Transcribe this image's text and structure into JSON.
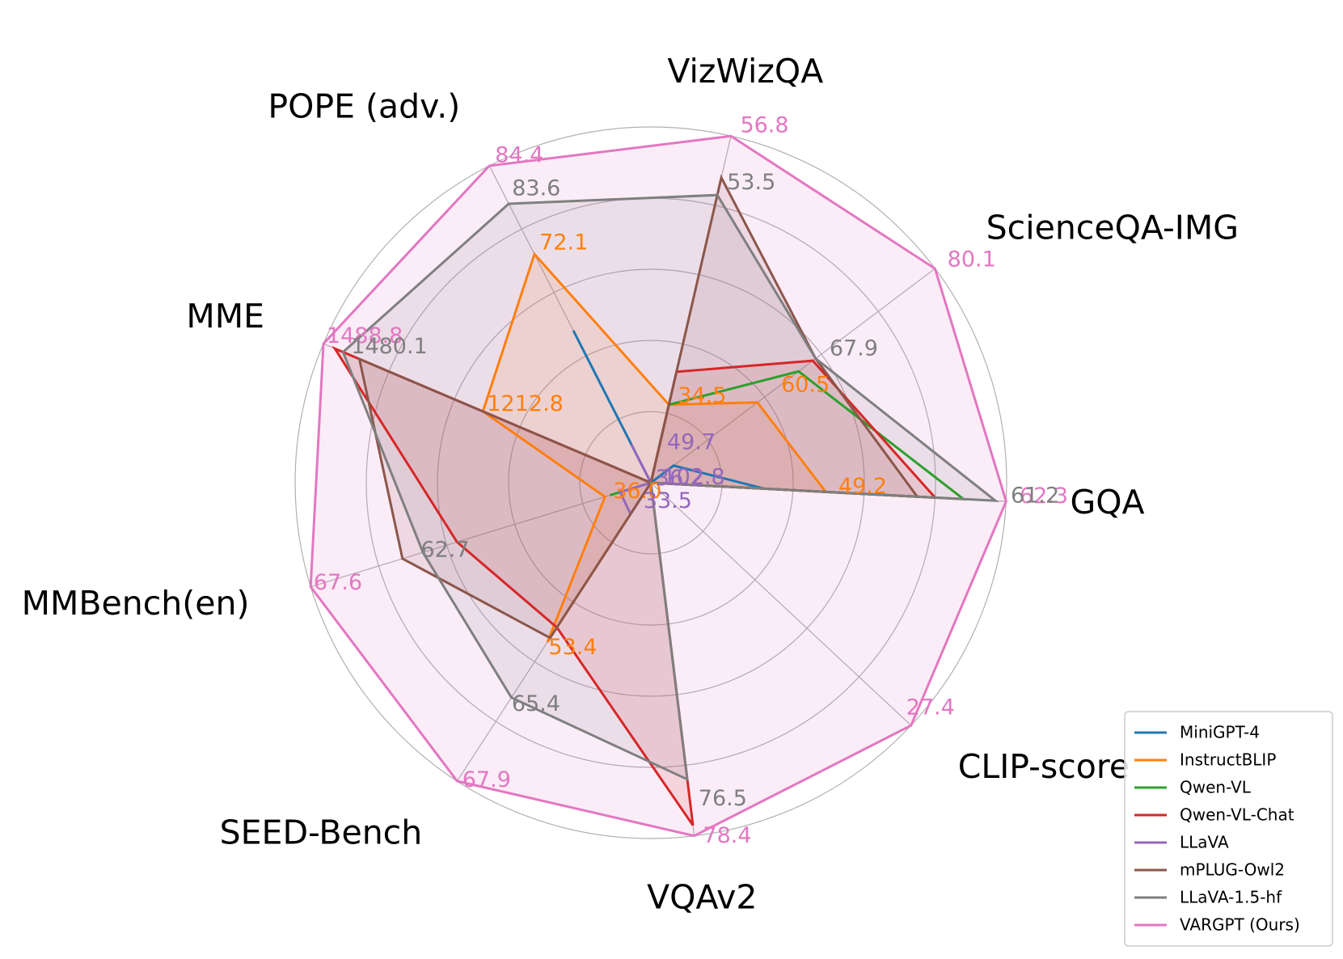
{
  "chart_data": {
    "type": "radar",
    "axes": [
      "GQA",
      "ScienceQA-IMG",
      "VizWizQA",
      "POPE (adv.)",
      "MME",
      "MMBench(en)",
      "SEED-Bench",
      "VQAv2",
      "CLIP-score"
    ],
    "rlim": [
      0,
      100
    ],
    "rgrid_fractions": [
      0.2,
      0.4,
      0.6,
      0.8,
      1.0
    ],
    "legend_position": "bottom-right",
    "series": [
      {
        "name": "MiniGPT-4",
        "color": "#1f77b4",
        "fill": false,
        "values": [
          32,
          8,
          0,
          48,
          0,
          0,
          0,
          0,
          0
        ]
      },
      {
        "name": "InstructBLIP",
        "color": "#ff7f0e",
        "fill": true,
        "values": [
          49.2,
          37.5,
          22.5,
          72.1,
          51.3,
          13.5,
          53.4,
          0,
          0
        ]
      },
      {
        "name": "Qwen-VL",
        "color": "#2ca02c",
        "fill": false,
        "values": [
          88,
          52,
          22.5,
          0,
          0,
          12,
          0,
          0,
          0
        ]
      },
      {
        "name": "Qwen-VL-Chat",
        "color": "#d62728",
        "fill": true,
        "values": [
          80,
          57,
          32,
          0,
          96.5,
          57,
          48.5,
          97,
          0
        ]
      },
      {
        "name": "LLaVA",
        "color": "#9467bd",
        "fill": false,
        "values": [
          0,
          0,
          0,
          12,
          0,
          9,
          10.5,
          0,
          0
        ]
      },
      {
        "name": "mPLUG-Owl2",
        "color": "#8c564b",
        "fill": true,
        "values": [
          75,
          58,
          88,
          0,
          89,
          73,
          52,
          0,
          0
        ]
      },
      {
        "name": "LLaVA-1.5-hf",
        "color": "#7f7f7f",
        "fill": true,
        "values": [
          97,
          58,
          83,
          88,
          94,
          67,
          72,
          84,
          0
        ]
      },
      {
        "name": "VARGPT (Ours)",
        "color": "#e377c2",
        "fill": true,
        "values": [
          100,
          100,
          100,
          100,
          100,
          100,
          100,
          100,
          100
        ]
      }
    ],
    "value_labels": [
      {
        "text": "62.3",
        "color": "#e377c2",
        "axis": 0,
        "r": 101.5
      },
      {
        "text": "61.2",
        "color": "#7f7f7f",
        "axis": 0,
        "r": 99
      },
      {
        "text": "49.2",
        "color": "#ff7f0e",
        "axis": 0,
        "r": 50.5
      },
      {
        "text": "102.8",
        "color": "#9467bd",
        "axis": 0,
        "r": 1
      },
      {
        "text": "80.1",
        "color": "#e377c2",
        "axis": 1,
        "r": 101.5
      },
      {
        "text": "67.9",
        "color": "#7f7f7f",
        "axis": 1,
        "r": 60
      },
      {
        "text": "60.5",
        "color": "#ff7f0e",
        "axis": 1,
        "r": 43
      },
      {
        "text": "56.8",
        "color": "#e377c2",
        "axis": 2,
        "r": 101.5
      },
      {
        "text": "53.5",
        "color": "#7f7f7f",
        "axis": 2,
        "r": 85
      },
      {
        "text": "34.5",
        "color": "#ff7f0e",
        "axis": 2,
        "r": 23.5
      },
      {
        "text": "49.7",
        "color": "#9467bd",
        "axis": 2,
        "r": 10
      },
      {
        "text": "84.4",
        "color": "#e377c2",
        "axis": 3,
        "r": 101.5
      },
      {
        "text": "83.6",
        "color": "#7f7f7f",
        "axis": 3,
        "r": 91
      },
      {
        "text": "72.1",
        "color": "#ff7f0e",
        "axis": 3,
        "r": 74
      },
      {
        "text": "1488.8",
        "color": "#e377c2",
        "axis": 4,
        "r": 101.5
      },
      {
        "text": "1480.1",
        "color": "#7f7f7f",
        "axis": 4,
        "r": 94
      },
      {
        "text": "1212.8",
        "color": "#ff7f0e",
        "axis": 4,
        "r": 52.5
      },
      {
        "text": "67.6",
        "color": "#e377c2",
        "axis": 5,
        "r": 101.5
      },
      {
        "text": "62.7",
        "color": "#7f7f7f",
        "axis": 5,
        "r": 70
      },
      {
        "text": "36.0",
        "color": "#ff7f0e",
        "axis": 5,
        "r": 13.5
      },
      {
        "text": "36.2",
        "color": "#9467bd",
        "axis": 5,
        "r": 1
      },
      {
        "text": "67.9",
        "color": "#e377c2",
        "axis": 6,
        "r": 101.5
      },
      {
        "text": "65.4",
        "color": "#7f7f7f",
        "axis": 6,
        "r": 76
      },
      {
        "text": "53.4",
        "color": "#ff7f0e",
        "axis": 6,
        "r": 57
      },
      {
        "text": "33.5",
        "color": "#9467bd",
        "axis": 6,
        "r": 8
      },
      {
        "text": "78.4",
        "color": "#e377c2",
        "axis": 7,
        "r": 101.5
      },
      {
        "text": "76.5",
        "color": "#7f7f7f",
        "axis": 7,
        "r": 91
      },
      {
        "text": "27.4",
        "color": "#e377c2",
        "axis": 8,
        "r": 95
      }
    ]
  }
}
